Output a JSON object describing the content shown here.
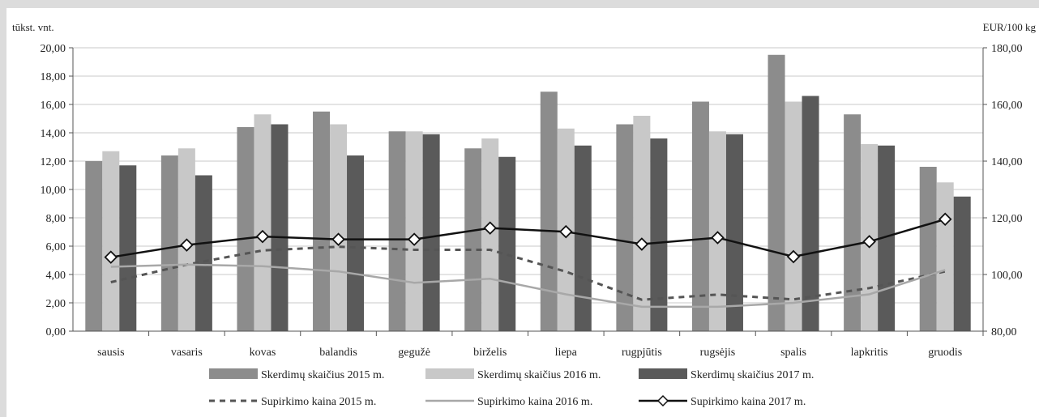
{
  "chart_data": {
    "type": "bar",
    "left_axis_unit": "tūkst. vnt.",
    "right_axis_unit": "EUR/100 kg",
    "ylim_left": [
      0,
      20
    ],
    "ylim_right": [
      80,
      180
    ],
    "left_ticks": [
      "0,00",
      "2,00",
      "4,00",
      "6,00",
      "8,00",
      "10,00",
      "12,00",
      "14,00",
      "16,00",
      "18,00",
      "20,00"
    ],
    "right_ticks": [
      "80,00",
      "100,00",
      "120,00",
      "140,00",
      "160,00",
      "180,00"
    ],
    "categories": [
      "sausis",
      "vasaris",
      "kovas",
      "balandis",
      "gegužė",
      "birželis",
      "liepa",
      "rugpjūtis",
      "rugsėjis",
      "spalis",
      "lapkritis",
      "gruodis"
    ],
    "grid": true,
    "legend_position": "bottom",
    "bar_series": [
      {
        "name": "Skerdimų skaičius 2015 m.",
        "color": "#8c8c8c",
        "values": [
          12.0,
          12.4,
          14.4,
          15.5,
          14.1,
          12.9,
          16.9,
          14.6,
          16.2,
          19.5,
          15.3,
          11.6
        ]
      },
      {
        "name": "Skerdimų skaičius 2016 m.",
        "color": "#c8c8c8",
        "values": [
          12.7,
          12.9,
          15.3,
          14.6,
          14.1,
          13.6,
          14.3,
          15.2,
          14.1,
          16.2,
          13.2,
          10.5
        ]
      },
      {
        "name": "Skerdimų skaičius 2017 m.",
        "color": "#5a5a5a",
        "values": [
          11.7,
          11.0,
          14.6,
          12.4,
          13.9,
          12.3,
          13.1,
          13.6,
          13.9,
          16.6,
          13.1,
          9.5
        ]
      }
    ],
    "line_series": [
      {
        "name": "Supirkimo kaina 2015 m.",
        "color": "#555555",
        "style": "dashed",
        "values": [
          97.3,
          103.5,
          108.5,
          109.8,
          108.7,
          108.7,
          101.0,
          91.1,
          92.9,
          91.2,
          95.2,
          101.1
        ]
      },
      {
        "name": "Supirkimo kaina 2016 m.",
        "color": "#a8a8a8",
        "style": "solid",
        "values": [
          102.7,
          103.5,
          102.9,
          101.1,
          97.1,
          98.5,
          93.0,
          88.6,
          88.6,
          90.0,
          93.0,
          101.6
        ]
      },
      {
        "name": "Supirkimo kaina 2017 m.",
        "color": "#111111",
        "style": "solid-diamond",
        "values": [
          106.1,
          110.4,
          113.4,
          112.4,
          112.4,
          116.4,
          115.1,
          110.7,
          113.0,
          106.3,
          111.6,
          119.5
        ]
      }
    ]
  }
}
